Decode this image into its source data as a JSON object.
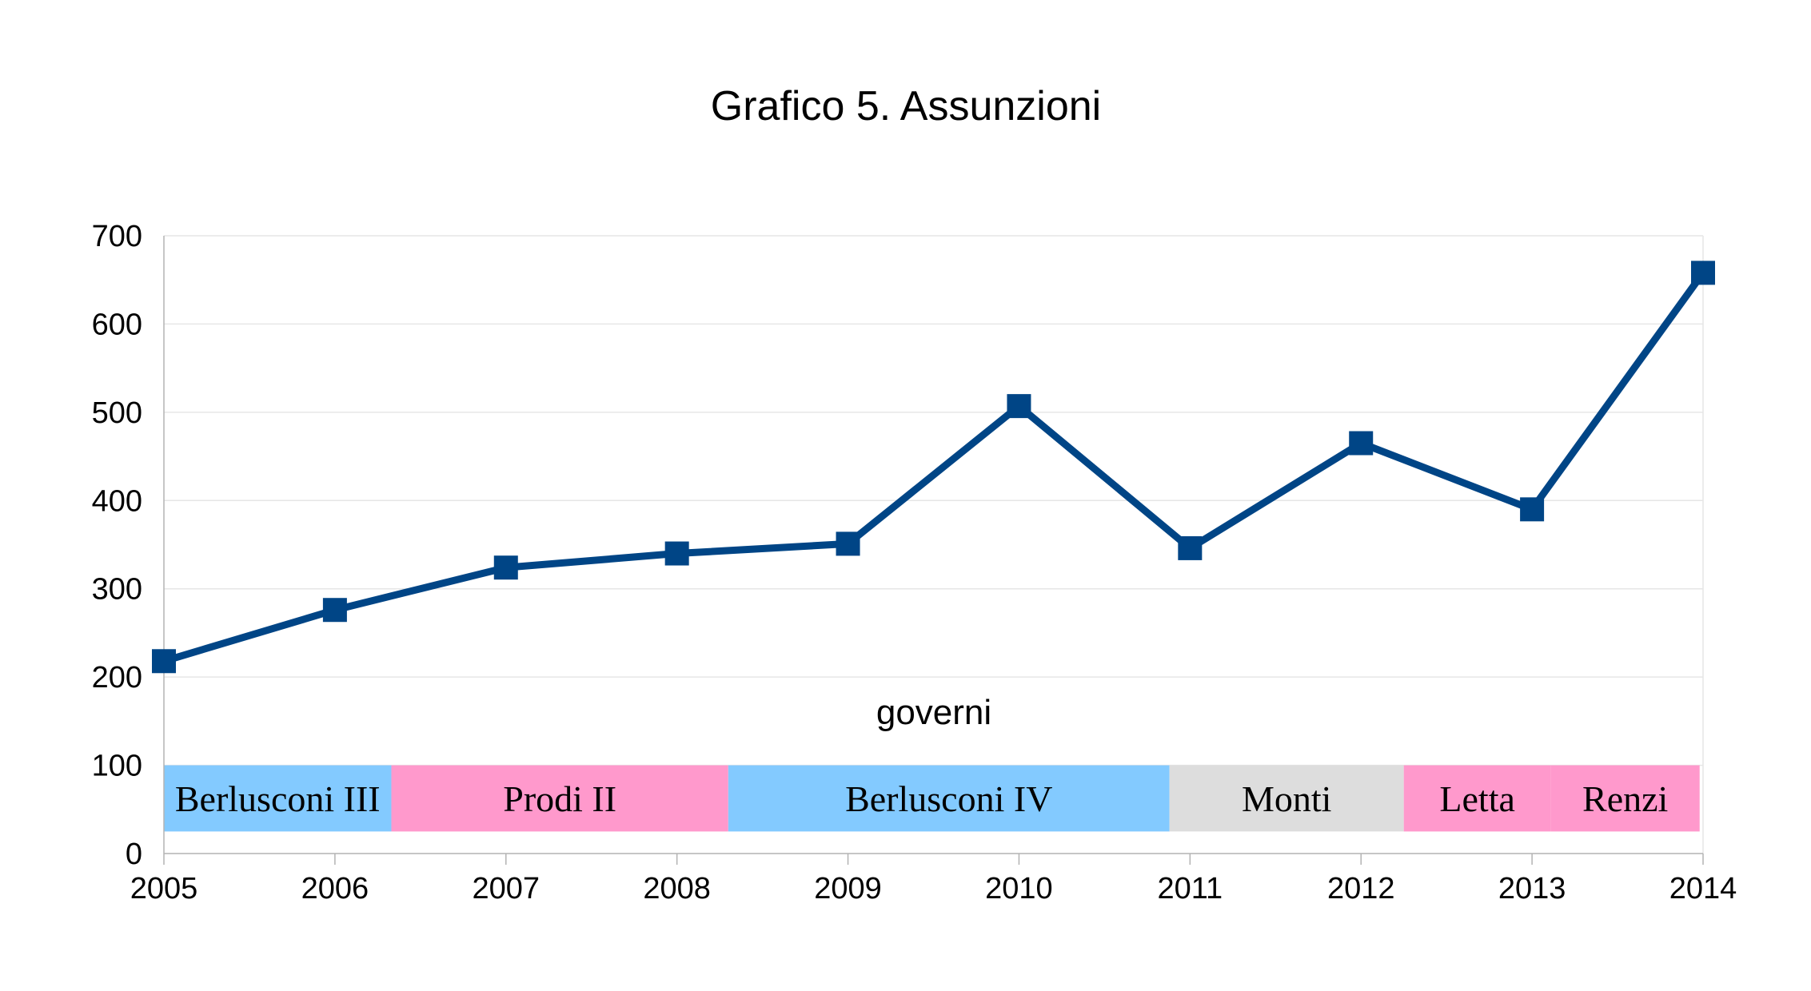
{
  "chart_data": {
    "type": "line",
    "title": "Grafico 5. Assunzioni",
    "xlabel": "",
    "ylabel": "",
    "x": [
      "2005",
      "2006",
      "2007",
      "2008",
      "2009",
      "2010",
      "2011",
      "2012",
      "2013",
      "2014"
    ],
    "series": [
      {
        "values": [
          218,
          276,
          324,
          340,
          351,
          507,
          346,
          465,
          390,
          658
        ],
        "color": "#004586",
        "marker": "square"
      }
    ],
    "ylim": [
      0,
      700
    ],
    "yticks": [
      0,
      100,
      200,
      300,
      400,
      500,
      600,
      700
    ],
    "grid": true,
    "legend": "none",
    "annotation": "governi",
    "governments": [
      {
        "label": "Berlusconi III",
        "start": 2005,
        "end": 2006.33,
        "color": "#83caff"
      },
      {
        "label": "Prodi II",
        "start": 2006.33,
        "end": 2008.3,
        "color": "#ff99cc"
      },
      {
        "label": "Berlusconi IV",
        "start": 2008.3,
        "end": 2010.88,
        "color": "#83caff"
      },
      {
        "label": "Monti",
        "start": 2010.88,
        "end": 2012.25,
        "color": "#dddddd"
      },
      {
        "label": "Letta",
        "start": 2012.25,
        "end": 2013.11,
        "color": "#ff99cc"
      },
      {
        "label": "Renzi",
        "start": 2013.11,
        "end": 2013.98,
        "color": "#ff99cc"
      }
    ],
    "government_band_range": [
      25,
      100
    ]
  }
}
